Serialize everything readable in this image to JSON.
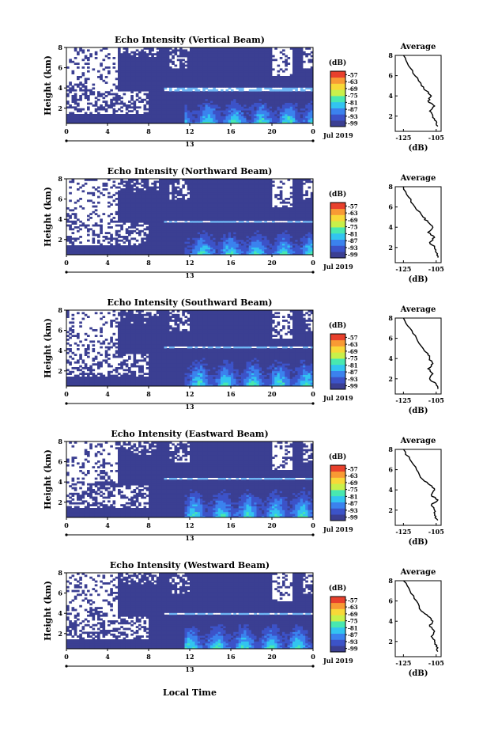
{
  "figure": {
    "colorbar_unit": "(dB)",
    "colorbar_ticks": [
      "-57",
      "-63",
      "-69",
      "-75",
      "-81",
      "-87",
      "-93",
      "-99"
    ],
    "colorbar_colors": [
      "#3b3f92",
      "#3c53c8",
      "#3b82ee",
      "#32c4f0",
      "#48e8b0",
      "#c8f04a",
      "#f8d838",
      "#f89a34",
      "#e8402c"
    ],
    "height_label": "Height (km)",
    "height_ticks": [
      "8",
      "6",
      "4",
      "2"
    ],
    "time_ticks": [
      "0",
      "4",
      "8",
      "12",
      "16",
      "20",
      "0"
    ],
    "date_day": "13",
    "date_month_year": "Jul 2019",
    "avg_title": "Average",
    "avg_xticks": [
      "-125",
      "-105"
    ],
    "avg_xlabel": "(dB)",
    "xaxis_label": "Local Time",
    "background_color": "#3b3f92",
    "panels": [
      {
        "title": "Echo Intensity (Vertical Beam)"
      },
      {
        "title": "Echo Intensity (Northward Beam)"
      },
      {
        "title": "Echo Intensity (Southward Beam)"
      },
      {
        "title": "Echo Intensity (Eastward Beam)"
      },
      {
        "title": "Echo Intensity (Westward Beam)"
      }
    ]
  },
  "chart_data": [
    {
      "type": "heatmap",
      "beam": "Vertical",
      "x_range_hours": [
        0,
        24
      ],
      "y_range_km": [
        0.5,
        8
      ],
      "value_range_dB": [
        -99,
        -57
      ],
      "cloud_layer_km": 3.9,
      "average_profile": {
        "height_km": [
          8,
          7,
          6,
          5,
          4.5,
          4,
          3.5,
          3,
          2.5,
          2,
          1.5,
          1
        ],
        "dB": [
          -125,
          -122,
          -118,
          -114,
          -111,
          -108,
          -110,
          -106,
          -109,
          -107,
          -105,
          -104
        ]
      }
    },
    {
      "type": "heatmap",
      "beam": "Northward",
      "x_range_hours": [
        0,
        24
      ],
      "y_range_km": [
        0.5,
        8
      ],
      "value_range_dB": [
        -99,
        -57
      ],
      "cloud_layer_km": 3.8,
      "average_profile": {
        "height_km": [
          8,
          7,
          6,
          5,
          4.5,
          4,
          3.5,
          3,
          2.5,
          2,
          1.5,
          1
        ],
        "dB": [
          -125,
          -122,
          -118,
          -113,
          -110,
          -107,
          -110,
          -106,
          -109,
          -106,
          -105,
          -104
        ]
      }
    },
    {
      "type": "heatmap",
      "beam": "Southward",
      "x_range_hours": [
        0,
        24
      ],
      "y_range_km": [
        0.5,
        8
      ],
      "value_range_dB": [
        -99,
        -57
      ],
      "cloud_layer_km": 4.3,
      "average_profile": {
        "height_km": [
          8,
          7,
          6,
          5,
          4.5,
          4,
          3.5,
          3,
          2.5,
          2,
          1.5,
          1
        ],
        "dB": [
          -125,
          -121,
          -117,
          -113,
          -110,
          -109,
          -107,
          -110,
          -107,
          -109,
          -105,
          -104
        ]
      }
    },
    {
      "type": "heatmap",
      "beam": "Eastward",
      "x_range_hours": [
        0,
        24
      ],
      "y_range_km": [
        0.5,
        8
      ],
      "value_range_dB": [
        -99,
        -57
      ],
      "cloud_layer_km": 4.4,
      "average_profile": {
        "height_km": [
          8,
          7,
          6,
          5,
          4.5,
          4,
          3.5,
          3,
          2.5,
          2,
          1.5,
          1
        ],
        "dB": [
          -125,
          -121,
          -117,
          -113,
          -109,
          -106,
          -108,
          -104,
          -108,
          -106,
          -106,
          -104
        ]
      }
    },
    {
      "type": "heatmap",
      "beam": "Westward",
      "x_range_hours": [
        0,
        24
      ],
      "y_range_km": [
        0.5,
        8
      ],
      "value_range_dB": [
        -99,
        -57
      ],
      "cloud_layer_km": 4.0,
      "average_profile": {
        "height_km": [
          8,
          7,
          6,
          5,
          4.5,
          4,
          3.5,
          3,
          2.5,
          2,
          1.5,
          1
        ],
        "dB": [
          -125,
          -121,
          -117,
          -114,
          -110,
          -107,
          -109,
          -106,
          -108,
          -106,
          -105,
          -104
        ]
      }
    }
  ]
}
